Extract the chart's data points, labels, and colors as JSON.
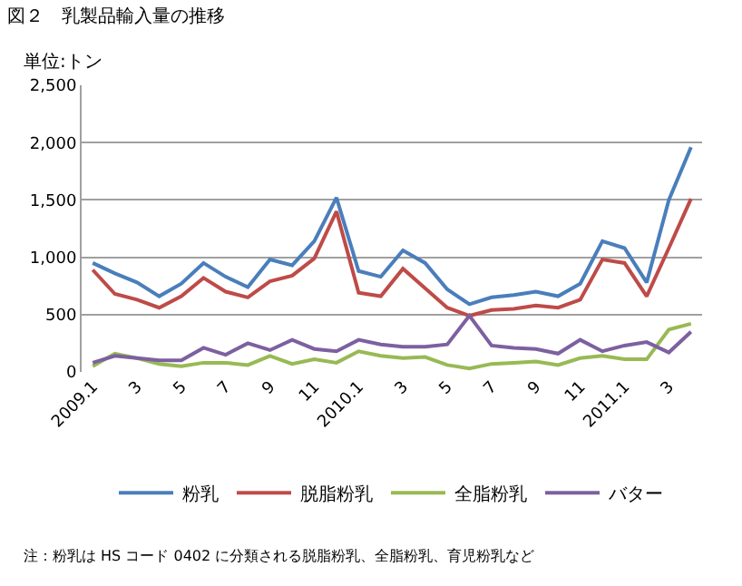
{
  "chart_data": {
    "type": "line",
    "title": "図２　乳製品輸入量の推移",
    "ylabel": "単位:トン",
    "categories": [
      "2009.1",
      null,
      "3",
      null,
      "5",
      null,
      "7",
      null,
      "9",
      null,
      "11",
      null,
      "2010.1",
      null,
      "3",
      null,
      "5",
      null,
      "7",
      null,
      "9",
      null,
      "11",
      null,
      "2011.1",
      null,
      "3",
      null
    ],
    "series": [
      {
        "name": "粉乳",
        "color": "#4a7ebb",
        "values": [
          950,
          860,
          780,
          660,
          770,
          950,
          830,
          740,
          980,
          930,
          1140,
          1520,
          880,
          830,
          1060,
          950,
          720,
          590,
          650,
          670,
          700,
          660,
          770,
          1140,
          1080,
          780,
          1500,
          1960
        ]
      },
      {
        "name": "脱脂粉乳",
        "color": "#be4b48",
        "values": [
          890,
          680,
          630,
          560,
          660,
          820,
          700,
          650,
          790,
          840,
          990,
          1400,
          690,
          660,
          900,
          730,
          560,
          490,
          540,
          550,
          580,
          560,
          630,
          980,
          950,
          660,
          1080,
          1510
        ]
      },
      {
        "name": "全脂粉乳",
        "color": "#98b954",
        "values": [
          50,
          160,
          120,
          70,
          50,
          80,
          80,
          60,
          140,
          70,
          110,
          80,
          180,
          140,
          120,
          130,
          60,
          30,
          70,
          80,
          90,
          60,
          120,
          140,
          110,
          110,
          370,
          420
        ]
      },
      {
        "name": "バター",
        "color": "#7d60a0",
        "values": [
          80,
          140,
          120,
          100,
          100,
          210,
          150,
          250,
          190,
          280,
          200,
          180,
          280,
          240,
          220,
          220,
          240,
          490,
          230,
          210,
          200,
          160,
          280,
          180,
          230,
          260,
          170,
          350
        ]
      }
    ],
    "ylim": [
      0,
      2500
    ],
    "yticks": [
      {
        "value": 0,
        "label": "0"
      },
      {
        "value": 500,
        "label": "500"
      },
      {
        "value": 1000,
        "label": "1,000"
      },
      {
        "value": 1500,
        "label": "1,500"
      },
      {
        "value": 2000,
        "label": "2,000"
      },
      {
        "value": 2500,
        "label": "2,500"
      }
    ],
    "grid": "y",
    "legend": "bottom",
    "marker": "none",
    "line_style": "solid",
    "annotations": [
      "注：粉乳は HS コード 0402 に分類される脱脂粉乳、全脂粉乳、育児粉乳など"
    ]
  }
}
